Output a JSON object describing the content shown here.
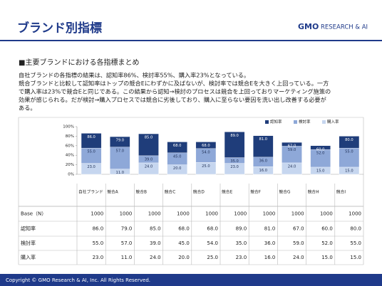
{
  "header": {
    "title": "ブランド別指標",
    "logo_main": "GMO",
    "logo_sub": "RESEARCH & AI"
  },
  "section": {
    "heading": "■主要ブランドにおける各指標まとめ",
    "lines": [
      "自社ブランドの各指標の結果は、認知率86%、検討率55%、購入率23%となっている。",
      "競合ブランドと比較して認知率はトップの競合Eにわずかに及ばないが、検討率では競合Eを大きく上回っている。一方",
      "で購入率は23%で競合Eと同じである。この結果から認知→検討のプロセスは競合を上回っておりマーケティング施策の",
      "効果が感じられる。だが検討→購入プロセスでは競合に劣後しており、購入に至らない要因を洗い出し改善する必要が",
      "ある。"
    ]
  },
  "chart_data": {
    "type": "bar",
    "categories": [
      "自社ブランド",
      "競合A",
      "競合B",
      "競合C",
      "競合D",
      "競合E",
      "競合F",
      "競合G",
      "競合H",
      "競合I"
    ],
    "series": [
      {
        "name": "認知率",
        "color": "#1f3d7a",
        "values": [
          86,
          79,
          85,
          68,
          68,
          89,
          81,
          67,
          60,
          80
        ],
        "value_labels": [
          "86.0",
          "79.0",
          "85.0",
          "68.0",
          "68.0",
          "89.0",
          "81.0",
          "67.0",
          "60.0",
          "80.0"
        ]
      },
      {
        "name": "検討率",
        "color": "#8ea8d8",
        "values": [
          55,
          57,
          39,
          45,
          54,
          35,
          36,
          59,
          52,
          55
        ],
        "value_labels": [
          "55.0",
          "57.0",
          "39.0",
          "45.0",
          "54.0",
          "35.0",
          "36.0",
          "59.0",
          "52.0",
          "55.0"
        ]
      },
      {
        "name": "購入率",
        "color": "#c6d6ef",
        "values": [
          23,
          11,
          24,
          20,
          25,
          23,
          16,
          24,
          15,
          15
        ],
        "value_labels": [
          "23.0",
          "11.0",
          "24.0",
          "20.0",
          "25.0",
          "23.0",
          "16.0",
          "24.0",
          "15.0",
          "15.0"
        ]
      }
    ],
    "ylim": [
      0,
      100
    ],
    "yticks": [
      {
        "value": 0,
        "label": "0%"
      },
      {
        "value": 20,
        "label": "20%"
      },
      {
        "value": 40,
        "label": "40%"
      },
      {
        "value": 60,
        "label": "60%"
      },
      {
        "value": 80,
        "label": "80%"
      },
      {
        "value": 100,
        "label": "100%"
      }
    ],
    "grid": false,
    "legend": "top-right"
  },
  "table": {
    "base_label": "Base（N）",
    "base": [
      1000,
      1000,
      1000,
      1000,
      1000,
      1000,
      1000,
      1000,
      1000,
      1000
    ]
  },
  "footer": {
    "text": "Copyright © GMO Research & AI, Inc. All Rights Reserved."
  }
}
